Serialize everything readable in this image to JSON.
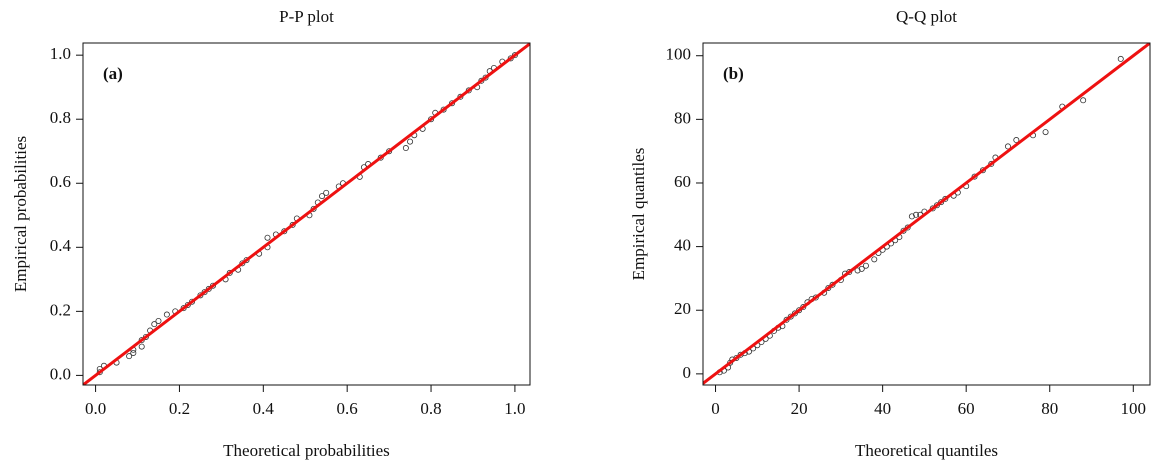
{
  "chart_data": [
    {
      "type": "scatter",
      "title": "P-P plot",
      "panel_label": "(a)",
      "x_label": "Theoretical probabilities",
      "y_label": "Empirical probabilities",
      "xlim": [
        -0.03,
        1.036
      ],
      "ylim": [
        -0.03,
        1.038
      ],
      "xticks": [
        {
          "value": 0,
          "label": "0.0"
        },
        0.2,
        0.4,
        0.6,
        0.8,
        {
          "value": 1,
          "label": "1.0"
        }
      ],
      "yticks": [
        {
          "value": 0,
          "label": "0.0"
        },
        0.2,
        0.4,
        0.6,
        0.8,
        {
          "value": 1,
          "label": "1.0"
        }
      ],
      "marker_color": "#333333",
      "reference_line": {
        "intercept": 0,
        "slope": 1,
        "color": "#ee1111"
      },
      "x": [
        0.01,
        0.01,
        0.02,
        0.05,
        0.08,
        0.09,
        0.09,
        0.11,
        0.11,
        0.12,
        0.13,
        0.14,
        0.15,
        0.17,
        0.19,
        0.21,
        0.22,
        0.23,
        0.25,
        0.26,
        0.27,
        0.28,
        0.31,
        0.32,
        0.34,
        0.35,
        0.36,
        0.39,
        0.41,
        0.41,
        0.43,
        0.45,
        0.47,
        0.48,
        0.51,
        0.52,
        0.53,
        0.54,
        0.55,
        0.58,
        0.59,
        0.63,
        0.64,
        0.65,
        0.68,
        0.7,
        0.74,
        0.75,
        0.76,
        0.78,
        0.8,
        0.81,
        0.83,
        0.85,
        0.87,
        0.89,
        0.91,
        0.92,
        0.93,
        0.94,
        0.95,
        0.97,
        0.99,
        1.0
      ],
      "values": [
        0.01,
        0.02,
        0.03,
        0.04,
        0.06,
        0.07,
        0.08,
        0.09,
        0.11,
        0.12,
        0.14,
        0.16,
        0.17,
        0.19,
        0.2,
        0.21,
        0.22,
        0.23,
        0.25,
        0.26,
        0.27,
        0.28,
        0.3,
        0.32,
        0.33,
        0.35,
        0.36,
        0.38,
        0.4,
        0.43,
        0.44,
        0.45,
        0.47,
        0.49,
        0.5,
        0.52,
        0.54,
        0.56,
        0.57,
        0.59,
        0.6,
        0.62,
        0.65,
        0.66,
        0.68,
        0.7,
        0.71,
        0.73,
        0.75,
        0.77,
        0.8,
        0.82,
        0.83,
        0.85,
        0.87,
        0.89,
        0.9,
        0.92,
        0.93,
        0.95,
        0.96,
        0.98,
        0.99,
        1.0
      ]
    },
    {
      "type": "scatter",
      "title": "Q-Q plot",
      "panel_label": "(b)",
      "x_label": "Theoretical quantiles",
      "y_label": "Empirical quantiles",
      "xlim": [
        -3,
        104
      ],
      "ylim": [
        -3.5,
        104
      ],
      "xticks": [
        0,
        20,
        40,
        60,
        80,
        100
      ],
      "yticks": [
        0,
        20,
        40,
        60,
        80,
        100
      ],
      "marker_color": "#333333",
      "reference_line": {
        "intercept": 0,
        "slope": 1,
        "color": "#ee1111"
      },
      "x": [
        1,
        2,
        3,
        3.5,
        4,
        5,
        6,
        7,
        8,
        9,
        10,
        11,
        12,
        13,
        14,
        15,
        16,
        17,
        18,
        19,
        20,
        21,
        22,
        23,
        24,
        26,
        27,
        28,
        30,
        31,
        32,
        34,
        35,
        36,
        38,
        39,
        40,
        41,
        42,
        43,
        44,
        45,
        46,
        47,
        48,
        49,
        50,
        52,
        53,
        54,
        55,
        57,
        58,
        60,
        62,
        64,
        66,
        67,
        70,
        72,
        76,
        79,
        83,
        88,
        97
      ],
      "values": [
        0.5,
        1,
        2,
        3.5,
        4.5,
        5,
        6,
        6.5,
        7,
        8,
        9,
        10,
        11,
        12,
        13.5,
        14.5,
        15,
        17,
        18,
        19,
        20,
        21,
        22.5,
        23.5,
        24,
        25.5,
        27,
        28,
        29.5,
        31.5,
        32,
        32.5,
        33,
        34,
        36,
        38,
        39,
        40,
        41,
        42,
        43,
        45,
        46,
        49.5,
        50,
        50,
        51,
        52,
        53,
        54,
        55,
        56,
        57,
        59,
        62,
        64,
        66,
        68,
        71.5,
        73.5,
        75,
        76,
        84,
        86,
        99
      ]
    }
  ]
}
